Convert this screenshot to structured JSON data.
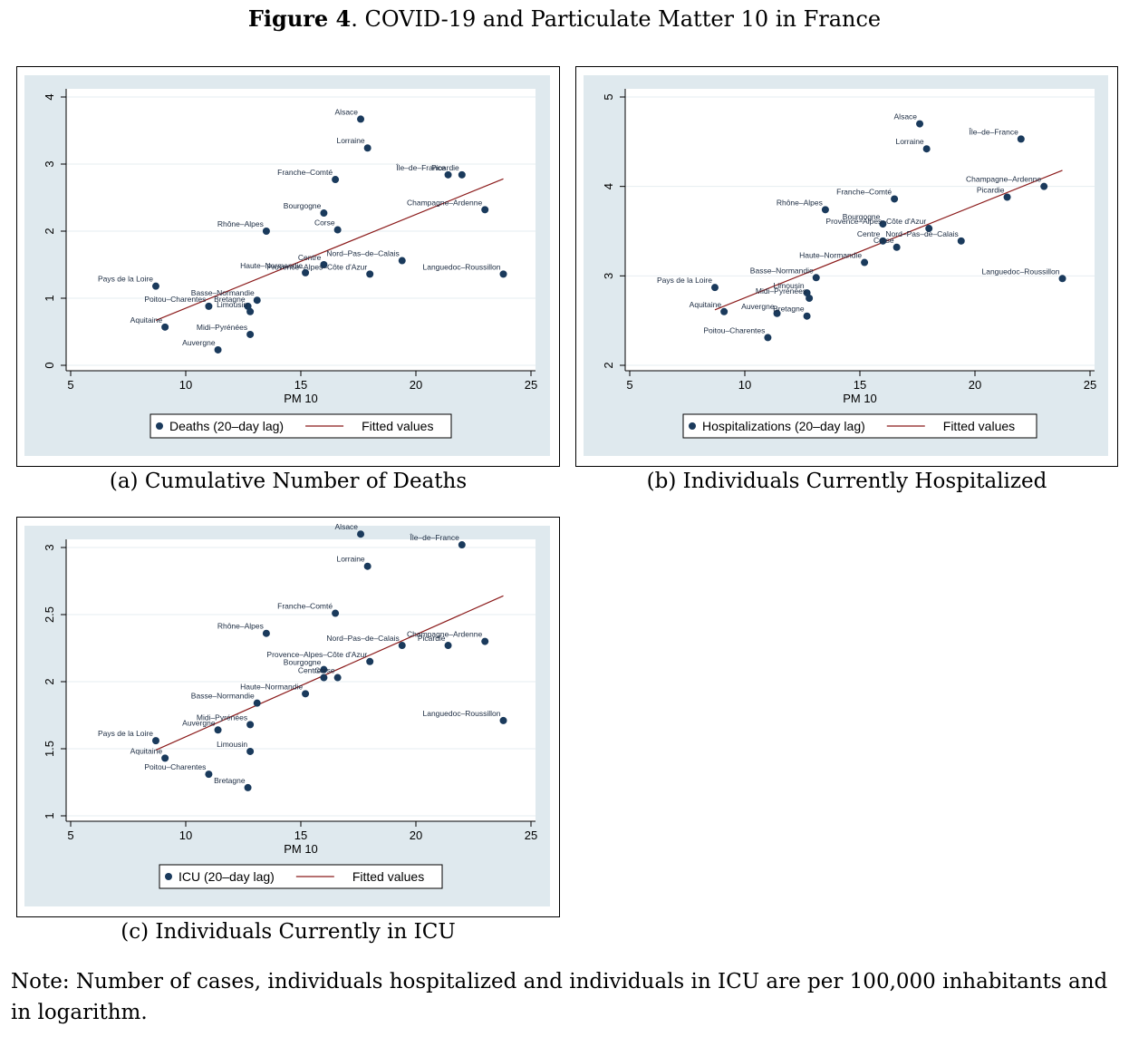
{
  "figure": {
    "title_bold": "Figure 4",
    "title_rest": ". COVID-19 and Particulate Matter 10 in France",
    "note": "Note: Number of cases, individuals hospitalized and individuals in ICU are per 100,000 inhabitants and in logarithm."
  },
  "colors": {
    "panel_bg": "#dfe9ee",
    "plot_bg": "#ffffff",
    "marker": "#1a3a5c",
    "fit_line": "#8b1a1a",
    "grid": "#e6edf1"
  },
  "chart_data": [
    {
      "id": "a",
      "type": "scatter",
      "caption": "(a) Cumulative Number of Deaths",
      "xlabel": "PM 10",
      "ylabel": "",
      "xlim": [
        5,
        25
      ],
      "ylim": [
        0,
        4
      ],
      "xticks": [
        5,
        10,
        15,
        20,
        25
      ],
      "yticks": [
        0,
        1,
        2,
        3,
        4
      ],
      "grid": true,
      "legend_position": "bottom",
      "legend": [
        "Deaths (20–day lag)",
        "Fitted values"
      ],
      "fit": {
        "x": [
          8.7,
          23.8
        ],
        "y": [
          0.67,
          2.78
        ]
      },
      "points": [
        {
          "label": "Alsace",
          "x": 17.6,
          "y": 3.67
        },
        {
          "label": "Lorraine",
          "x": 17.9,
          "y": 3.24
        },
        {
          "label": "Île–de–France",
          "x": 21.4,
          "y": 2.84
        },
        {
          "label": "Picardie",
          "x": 22.0,
          "y": 2.84
        },
        {
          "label": "Franche–Comté",
          "x": 16.5,
          "y": 2.77
        },
        {
          "label": "Champagne–Ardenne",
          "x": 23.0,
          "y": 2.32
        },
        {
          "label": "Bourgogne",
          "x": 16.0,
          "y": 2.27
        },
        {
          "label": "Corse",
          "x": 16.6,
          "y": 2.02
        },
        {
          "label": "Rhône–Alpes",
          "x": 13.5,
          "y": 2.0
        },
        {
          "label": "Nord–Pas–de–Calais",
          "x": 19.4,
          "y": 1.56
        },
        {
          "label": "Centre",
          "x": 16.0,
          "y": 1.5
        },
        {
          "label": "Haute–Normandie",
          "x": 15.2,
          "y": 1.38
        },
        {
          "label": "Provence–Alpes–Côte d'Azur",
          "x": 18.0,
          "y": 1.36
        },
        {
          "label": "Languedoc–Roussillon",
          "x": 23.8,
          "y": 1.36
        },
        {
          "label": "Pays de la Loire",
          "x": 8.7,
          "y": 1.18
        },
        {
          "label": "Basse–Normandie",
          "x": 13.1,
          "y": 0.97
        },
        {
          "label": "Poitou–Charentes",
          "x": 11.0,
          "y": 0.88
        },
        {
          "label": "Bretagne",
          "x": 12.7,
          "y": 0.88
        },
        {
          "label": "Limousin",
          "x": 12.8,
          "y": 0.8
        },
        {
          "label": "Aquitaine",
          "x": 9.1,
          "y": 0.57
        },
        {
          "label": "Midi–Pyrénées",
          "x": 12.8,
          "y": 0.46
        },
        {
          "label": "Auvergne",
          "x": 11.4,
          "y": 0.23
        }
      ]
    },
    {
      "id": "b",
      "type": "scatter",
      "caption": "(b) Individuals Currently Hospitalized",
      "xlabel": "PM 10",
      "ylabel": "",
      "xlim": [
        5,
        25
      ],
      "ylim": [
        2,
        5
      ],
      "xticks": [
        5,
        10,
        15,
        20,
        25
      ],
      "yticks": [
        2,
        3,
        4,
        5
      ],
      "grid": true,
      "legend_position": "bottom",
      "legend": [
        "Hospitalizations (20–day lag)",
        "Fitted values"
      ],
      "fit": {
        "x": [
          8.7,
          23.8
        ],
        "y": [
          2.62,
          4.18
        ]
      },
      "points": [
        {
          "label": "Alsace",
          "x": 17.6,
          "y": 4.7
        },
        {
          "label": "Île–de–France",
          "x": 22.0,
          "y": 4.53
        },
        {
          "label": "Lorraine",
          "x": 17.9,
          "y": 4.42
        },
        {
          "label": "Champagne–Ardenne",
          "x": 23.0,
          "y": 4.0
        },
        {
          "label": "Picardie",
          "x": 21.4,
          "y": 3.88
        },
        {
          "label": "Franche–Comté",
          "x": 16.5,
          "y": 3.86
        },
        {
          "label": "Rhône–Alpes",
          "x": 13.5,
          "y": 3.74
        },
        {
          "label": "Bourgogne",
          "x": 16.0,
          "y": 3.58
        },
        {
          "label": "Provence–Alpes–Côte d'Azur",
          "x": 18.0,
          "y": 3.53
        },
        {
          "label": "Nord–Pas–de–Calais",
          "x": 19.4,
          "y": 3.39
        },
        {
          "label": "Centre",
          "x": 16.0,
          "y": 3.39
        },
        {
          "label": "Corse",
          "x": 16.6,
          "y": 3.32
        },
        {
          "label": "Haute–Normandie",
          "x": 15.2,
          "y": 3.15
        },
        {
          "label": "Basse–Normandie",
          "x": 13.1,
          "y": 2.98
        },
        {
          "label": "Languedoc–Roussillon",
          "x": 23.8,
          "y": 2.97
        },
        {
          "label": "Pays de la Loire",
          "x": 8.7,
          "y": 2.87
        },
        {
          "label": "Limousin",
          "x": 12.7,
          "y": 2.81
        },
        {
          "label": "Midi–Pyrénées",
          "x": 12.8,
          "y": 2.75
        },
        {
          "label": "Aquitaine",
          "x": 9.1,
          "y": 2.6
        },
        {
          "label": "Auvergne",
          "x": 11.4,
          "y": 2.58
        },
        {
          "label": "Bretagne",
          "x": 12.7,
          "y": 2.55
        },
        {
          "label": "Poitou–Charentes",
          "x": 11.0,
          "y": 2.31
        }
      ]
    },
    {
      "id": "c",
      "type": "scatter",
      "caption": "(c) Individuals Currently in ICU",
      "xlabel": "PM 10",
      "ylabel": "",
      "xlim": [
        5,
        25
      ],
      "ylim": [
        1,
        3
      ],
      "xticks": [
        5,
        10,
        15,
        20,
        25
      ],
      "yticks": [
        1,
        1.5,
        2,
        2.5,
        3
      ],
      "grid": true,
      "legend_position": "bottom",
      "legend": [
        "ICU (20–day lag)",
        "Fitted values"
      ],
      "fit": {
        "x": [
          8.7,
          23.8
        ],
        "y": [
          1.49,
          2.64
        ]
      },
      "points": [
        {
          "label": "Alsace",
          "x": 17.6,
          "y": 3.1
        },
        {
          "label": "Île–de–France",
          "x": 22.0,
          "y": 3.02
        },
        {
          "label": "Lorraine",
          "x": 17.9,
          "y": 2.86
        },
        {
          "label": "Franche–Comté",
          "x": 16.5,
          "y": 2.51
        },
        {
          "label": "Rhône–Alpes",
          "x": 13.5,
          "y": 2.36
        },
        {
          "label": "Champagne–Ardenne",
          "x": 23.0,
          "y": 2.3
        },
        {
          "label": "Picardie",
          "x": 21.4,
          "y": 2.27
        },
        {
          "label": "Nord–Pas–de–Calais",
          "x": 19.4,
          "y": 2.27
        },
        {
          "label": "Provence–Alpes–Côte d'Azur",
          "x": 18.0,
          "y": 2.15
        },
        {
          "label": "Bourgogne",
          "x": 16.0,
          "y": 2.09
        },
        {
          "label": "Centre",
          "x": 16.0,
          "y": 2.03
        },
        {
          "label": "Corse",
          "x": 16.6,
          "y": 2.03
        },
        {
          "label": "Haute–Normandie",
          "x": 15.2,
          "y": 1.91
        },
        {
          "label": "Basse–Normandie",
          "x": 13.1,
          "y": 1.84
        },
        {
          "label": "Languedoc–Roussillon",
          "x": 23.8,
          "y": 1.71
        },
        {
          "label": "Midi–Pyrénées",
          "x": 12.8,
          "y": 1.68
        },
        {
          "label": "Auvergne",
          "x": 11.4,
          "y": 1.64
        },
        {
          "label": "Pays de la Loire",
          "x": 8.7,
          "y": 1.56
        },
        {
          "label": "Limousin",
          "x": 12.8,
          "y": 1.48
        },
        {
          "label": "Aquitaine",
          "x": 9.1,
          "y": 1.43
        },
        {
          "label": "Poitou–Charentes",
          "x": 11.0,
          "y": 1.31
        },
        {
          "label": "Bretagne",
          "x": 12.7,
          "y": 1.21
        }
      ]
    }
  ]
}
